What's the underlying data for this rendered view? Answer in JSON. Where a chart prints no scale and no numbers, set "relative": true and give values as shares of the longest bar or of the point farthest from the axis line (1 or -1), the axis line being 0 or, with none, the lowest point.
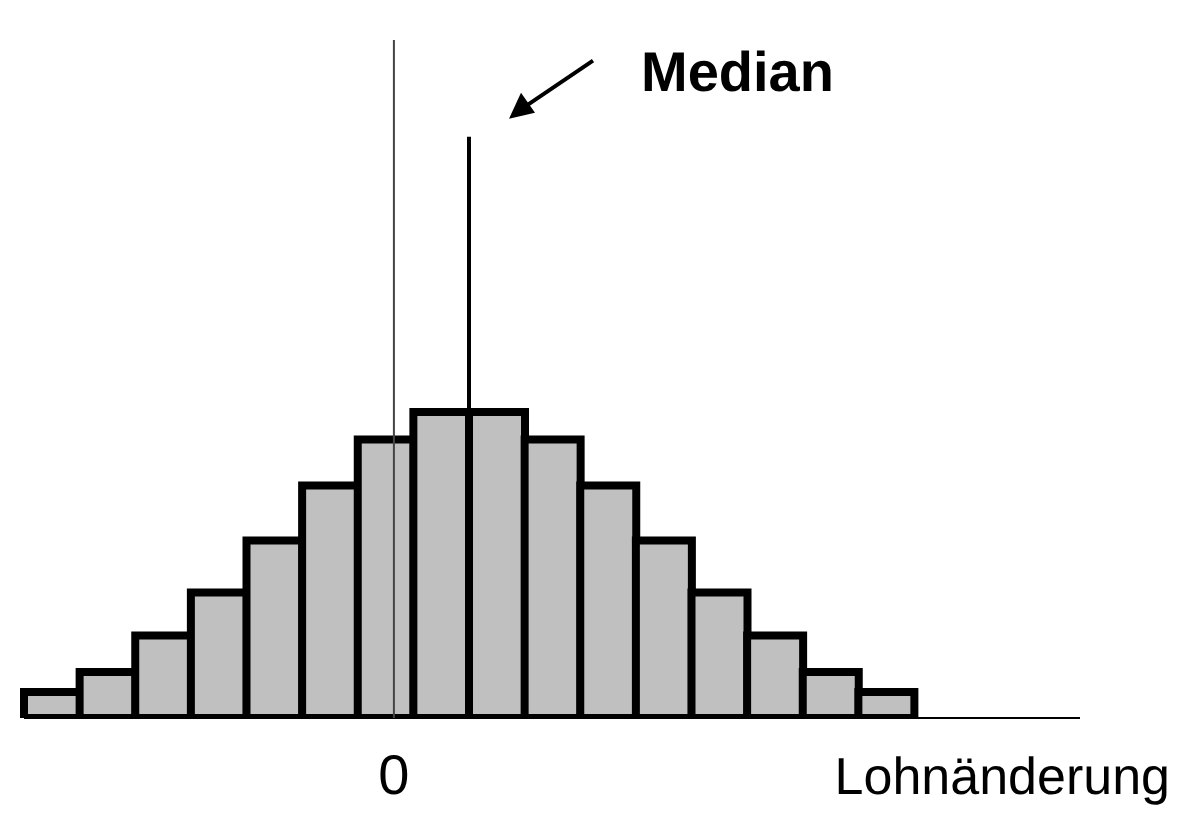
{
  "chart_data": {
    "type": "bar",
    "relative": true,
    "xlabel": "Lohnänderung",
    "categories": [
      null,
      null,
      null,
      null,
      null,
      null,
      null,
      null,
      null,
      null,
      null,
      null,
      null,
      null,
      null,
      null
    ],
    "values": [
      0.085,
      0.15,
      0.27,
      0.41,
      0.58,
      0.76,
      0.91,
      1,
      1,
      0.91,
      0.76,
      0.58,
      0.41,
      0.27,
      0.15,
      0.085
    ],
    "color": "#c0c0c0",
    "ref_lines": [
      {
        "axis": "x",
        "label": "0"
      },
      {
        "axis": "x",
        "label": "Median"
      }
    ]
  }
}
